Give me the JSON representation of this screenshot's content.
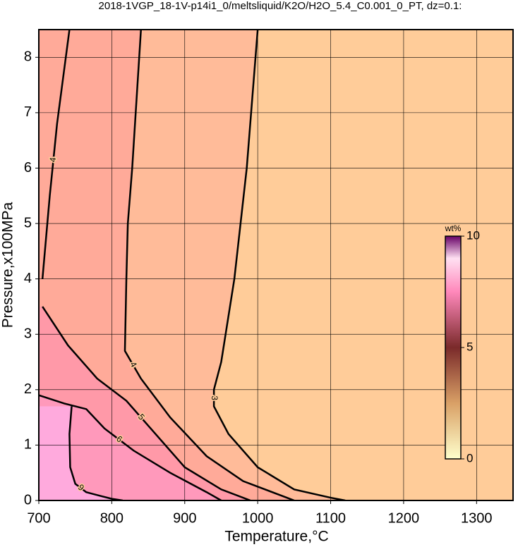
{
  "chart_data": {
    "type": "contour",
    "title": "2018-1VGP_18-1V-p14i1_0/meltsliquid/K2O/H2O_5.4_C0.001_0_PT, dz=0.1:",
    "x_label": "Temperature,°C",
    "y_label": "Pressure,x100MPa",
    "xlim": [
      700,
      1350
    ],
    "ylim": [
      0,
      8.5
    ],
    "xticks": [
      700,
      800,
      900,
      1000,
      1100,
      1200,
      1300
    ],
    "yticks": [
      0,
      1,
      2,
      3,
      4,
      5,
      6,
      7,
      8
    ],
    "grid": true,
    "background": "#ffcc99",
    "contours": [
      {
        "level": 3,
        "fill": "#ffbb99",
        "x": [
          1000,
          985,
          968,
          950,
          940,
          940,
          960,
          1000,
          1050,
          1100,
          1120
        ],
        "y": [
          8.5,
          6,
          4,
          2.5,
          2,
          1.7,
          1.2,
          0.6,
          0.2,
          0.05,
          0
        ]
      },
      {
        "level": 4,
        "fill": "#ffaa99",
        "x": [
          840,
          828,
          822,
          820,
          818,
          840,
          880,
          930,
          980,
          1040,
          1050
        ],
        "y": [
          8.5,
          6,
          5,
          4,
          2.7,
          2.2,
          1.5,
          0.8,
          0.35,
          0.05,
          0
        ]
      },
      {
        "level": 5,
        "fill": "#ff99a8",
        "x": [
          705,
          740,
          780,
          820,
          860,
          900,
          950,
          990
        ],
        "y": [
          3.5,
          2.8,
          2.2,
          1.8,
          1.2,
          0.6,
          0.2,
          0
        ]
      },
      {
        "level": 6,
        "fill": "#ff99bb",
        "x": [
          700,
          735,
          765,
          790,
          830,
          880,
          930,
          950
        ],
        "y": [
          1.9,
          1.75,
          1.65,
          1.3,
          0.9,
          0.5,
          0.15,
          0
        ]
      },
      {
        "level": 9,
        "fill": "#ffaadd",
        "x": [
          745,
          742,
          743,
          750,
          765,
          785,
          800,
          815
        ],
        "y": [
          1.7,
          1.2,
          0.6,
          0.3,
          0.15,
          0.08,
          0.03,
          0
        ]
      },
      {
        "level": 4,
        "x": [
          705,
          715,
          725,
          735,
          742
        ],
        "y": [
          4,
          5.5,
          6.8,
          7.8,
          8.5
        ]
      }
    ],
    "colorbar": {
      "label": "wt%",
      "lim": [
        0,
        10
      ],
      "ticks": [
        0,
        5,
        10
      ],
      "colormap": [
        {
          "value": 0,
          "color": "#ffffcc"
        },
        {
          "value": 2.5,
          "color": "#d9a066"
        },
        {
          "value": 5,
          "color": "#7a2a2a"
        },
        {
          "value": 7.5,
          "color": "#ff88bb"
        },
        {
          "value": 9,
          "color": "#ffe0f2"
        },
        {
          "value": 10,
          "color": "#660066"
        }
      ]
    }
  }
}
